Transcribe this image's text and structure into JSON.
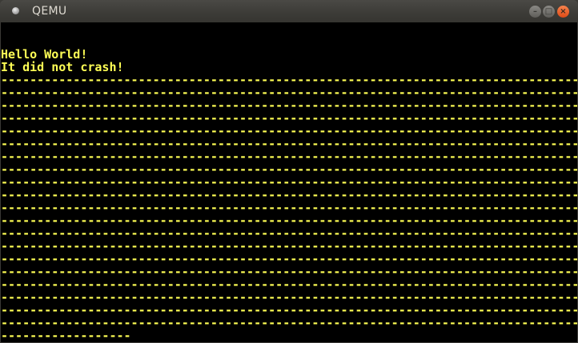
{
  "window": {
    "title": "QEMU",
    "app_icon": "qemu-app-icon",
    "buttons": {
      "minimize": "minimize-icon",
      "maximize": "maximize-icon",
      "close": "close-icon"
    },
    "close_color": "#e95420"
  },
  "screen": {
    "text_color": "#ffff55",
    "background": "#000000",
    "lines": [
      "",
      "",
      "Hello World!",
      "It did not crash!",
      "--------------------------------------------------------------------------------",
      "--------------------------------------------------------------------------------",
      "--------------------------------------------------------------------------------",
      "--------------------------------------------------------------------------------",
      "--------------------------------------------------------------------------------",
      "--------------------------------------------------------------------------------",
      "--------------------------------------------------------------------------------",
      "--------------------------------------------------------------------------------",
      "--------------------------------------------------------------------------------",
      "--------------------------------------------------------------------------------",
      "--------------------------------------------------------------------------------",
      "--------------------------------------------------------------------------------",
      "--------------------------------------------------------------------------------",
      "--------------------------------------------------------------------------------",
      "--------------------------------------------------------------------------------",
      "--------------------------------------------------------------------------------",
      "--------------------------------------------------------------------------------",
      "--------------------------------------------------------------------------------",
      "--------------------------------------------------------------------------------",
      "--------------------------------------------------------------------------------",
      "------------------"
    ]
  }
}
